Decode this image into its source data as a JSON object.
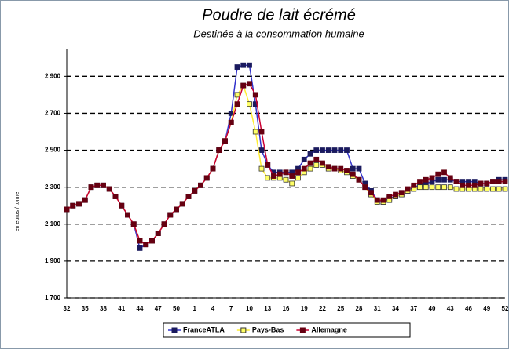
{
  "chart_data": {
    "type": "line",
    "title": "Poudre de lait écrémé",
    "subtitle": "Destinée à la consommation humaine",
    "y_label": "en euros / tonne",
    "categories": [
      "32",
      null,
      null,
      "35",
      null,
      null,
      "38",
      null,
      null,
      "41",
      null,
      null,
      "44",
      null,
      null,
      "47",
      null,
      null,
      "50",
      null,
      null,
      "1",
      null,
      null,
      "4",
      null,
      null,
      "7",
      null,
      null,
      "10",
      null,
      null,
      "13",
      null,
      null,
      "16",
      null,
      null,
      "19",
      null,
      null,
      "22",
      null,
      null,
      "25",
      null,
      null,
      "28",
      null,
      null,
      "31",
      null,
      null,
      "34",
      null,
      null,
      "37",
      null,
      null,
      "40",
      null,
      null,
      "43",
      null,
      null,
      "46",
      null,
      null,
      "49",
      null,
      null,
      "52"
    ],
    "series": [
      {
        "name": "FranceATLA",
        "color": "#3333cc",
        "marker_color": "#1a1a5e",
        "values": [
          2180,
          2200,
          2210,
          2230,
          2300,
          2310,
          2310,
          2290,
          2250,
          2200,
          2150,
          2100,
          1970,
          1990,
          2010,
          2050,
          2100,
          2150,
          2180,
          2210,
          2250,
          2280,
          2310,
          2350,
          2400,
          2500,
          2550,
          2700,
          2950,
          2960,
          2960,
          2750,
          2500,
          2420,
          2380,
          2380,
          2380,
          2380,
          2400,
          2450,
          2480,
          2500,
          2500,
          2500,
          2500,
          2500,
          2500,
          2400,
          2400,
          2320,
          2280,
          2230,
          2220,
          2240,
          2250,
          2260,
          2280,
          2300,
          2310,
          2320,
          2330,
          2340,
          2340,
          2340,
          2330,
          2330,
          2330,
          2330,
          2320,
          2320,
          2330,
          2340,
          2340
        ]
      },
      {
        "name": "Pays-Bas",
        "color": "#ffee33",
        "marker_color": "#ffff66",
        "values": [
          2180,
          2200,
          2210,
          2230,
          2300,
          2310,
          2310,
          2290,
          2250,
          2200,
          2150,
          2100,
          2010,
          1990,
          2010,
          2050,
          2100,
          2150,
          2180,
          2210,
          2250,
          2280,
          2310,
          2350,
          2400,
          2500,
          2550,
          2650,
          2800,
          2850,
          2750,
          2600,
          2400,
          2350,
          2350,
          2350,
          2340,
          2320,
          2350,
          2380,
          2400,
          2420,
          2420,
          2400,
          2400,
          2390,
          2380,
          2360,
          2340,
          2300,
          2260,
          2220,
          2220,
          2230,
          2250,
          2260,
          2280,
          2290,
          2300,
          2300,
          2300,
          2300,
          2300,
          2300,
          2290,
          2290,
          2290,
          2290,
          2290,
          2290,
          2290,
          2290,
          2290
        ]
      },
      {
        "name": "Allemagne",
        "color": "#cc0033",
        "marker_color": "#660011",
        "values": [
          2180,
          2200,
          2210,
          2230,
          2300,
          2310,
          2310,
          2290,
          2250,
          2200,
          2150,
          2100,
          2010,
          1990,
          2010,
          2050,
          2100,
          2150,
          2180,
          2210,
          2250,
          2280,
          2310,
          2350,
          2400,
          2500,
          2550,
          2650,
          2750,
          2850,
          2860,
          2800,
          2600,
          2420,
          2360,
          2370,
          2380,
          2360,
          2380,
          2400,
          2430,
          2450,
          2430,
          2410,
          2400,
          2400,
          2390,
          2370,
          2340,
          2300,
          2270,
          2230,
          2230,
          2250,
          2260,
          2270,
          2290,
          2310,
          2330,
          2340,
          2350,
          2370,
          2380,
          2350,
          2330,
          2310,
          2310,
          2310,
          2320,
          2320,
          2330,
          2330,
          2330
        ]
      }
    ],
    "ylim": [
      1700,
      3050
    ],
    "yticks": [
      {
        "value": 1700,
        "label": "1 700"
      },
      {
        "value": 1900,
        "label": "1 900"
      },
      {
        "value": 2100,
        "label": "2 100"
      },
      {
        "value": 2300,
        "label": "2 300"
      },
      {
        "value": 2500,
        "label": "2 500"
      },
      {
        "value": 2700,
        "label": "2 700"
      },
      {
        "value": 2900,
        "label": "2 900"
      }
    ],
    "grid": true,
    "legend": "bottom"
  }
}
